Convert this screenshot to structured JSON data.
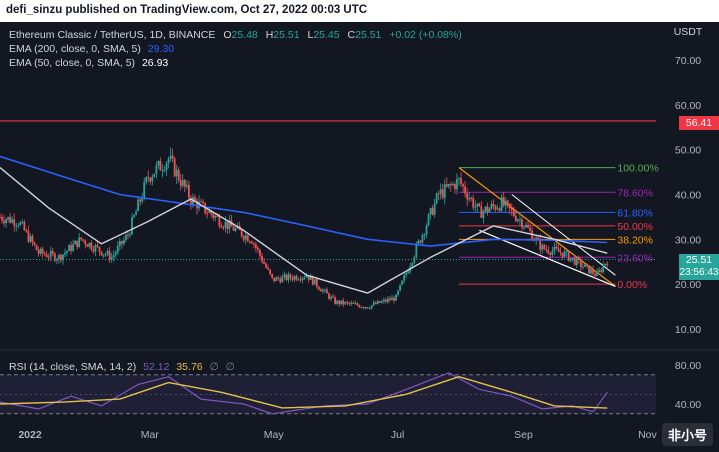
{
  "header": {
    "publisher_text": "defi_sinzu published on TradingView.com, Oct 27, 2022 00:03 UTC"
  },
  "legend": {
    "symbol": "Ethereum Classic / TetherUS, 1D, BINANCE",
    "o_label": "O",
    "o_value": "25.48",
    "h_label": "H",
    "h_value": "25.51",
    "l_label": "L",
    "l_value": "25.45",
    "c_label": "C",
    "c_value": "25.51",
    "change": "+0.02 (+0.08%)",
    "ema200_label": "EMA (200, close, 0, SMA, 5)",
    "ema200_value": "29.30",
    "ema50_label": "EMA (50, close, 0, SMA, 5)",
    "ema50_value": "26.93",
    "rsi_label": "RSI (14, close, SMA, 14, 2)",
    "rsi_value": "52.12",
    "rsi_sma_value": "35.76",
    "empty1": "∅",
    "empty2": "∅"
  },
  "axis": {
    "currency": "USDT",
    "price_ticks": [
      "70.00",
      "60.00",
      "50.00",
      "40.00",
      "30.00",
      "20.00",
      "10.00"
    ],
    "rsi_ticks": [
      "80.00",
      "40.00"
    ],
    "time_ticks": [
      "2022",
      "Mar",
      "May",
      "Jul",
      "Sep",
      "Nov"
    ]
  },
  "price_labels": {
    "horizontal_line": "56.41",
    "current_price": "25.51",
    "countdown": "23:56:43"
  },
  "fib_labels": [
    "100.00%",
    "78.60%",
    "61.80%",
    "50.00%",
    "38.20%",
    "23.60%",
    "0.00%"
  ],
  "colors": {
    "up": "#26a69a",
    "down": "#ef5350",
    "ema200": "#2962ff",
    "ema50": "#d1d4dc",
    "hline": "#f23645",
    "rsi": "#7e57c2",
    "rsi_sma": "#e4c14a",
    "fib": [
      "#4caf50",
      "#9c27b0",
      "#2962ff",
      "#f23645",
      "#ff9800",
      "#9c27b0",
      "#f23645"
    ]
  },
  "watermark": "非小号",
  "chart_data": {
    "type": "candlestick",
    "x_range": [
      "2022-01-01",
      "2022-11-20"
    ],
    "y_range": [
      5,
      78
    ],
    "horizontal_line": 56.41,
    "ema200": [
      {
        "x": "2022-01-01",
        "y": 48.5
      },
      {
        "x": "2022-02-01",
        "y": 44
      },
      {
        "x": "2022-03-01",
        "y": 40
      },
      {
        "x": "2022-04-01",
        "y": 38
      },
      {
        "x": "2022-05-01",
        "y": 36
      },
      {
        "x": "2022-06-01",
        "y": 33
      },
      {
        "x": "2022-07-01",
        "y": 30
      },
      {
        "x": "2022-08-01",
        "y": 28.5
      },
      {
        "x": "2022-09-01",
        "y": 30
      },
      {
        "x": "2022-10-01",
        "y": 29.8
      },
      {
        "x": "2022-10-27",
        "y": 29.3
      }
    ],
    "ema50": [
      {
        "x": "2022-01-01",
        "y": 46
      },
      {
        "x": "2022-01-25",
        "y": 37
      },
      {
        "x": "2022-02-20",
        "y": 29
      },
      {
        "x": "2022-03-15",
        "y": 34
      },
      {
        "x": "2022-04-05",
        "y": 39
      },
      {
        "x": "2022-05-01",
        "y": 32
      },
      {
        "x": "2022-06-01",
        "y": 22
      },
      {
        "x": "2022-07-01",
        "y": 18
      },
      {
        "x": "2022-08-01",
        "y": 26
      },
      {
        "x": "2022-09-01",
        "y": 33
      },
      {
        "x": "2022-10-01",
        "y": 30
      },
      {
        "x": "2022-10-27",
        "y": 26.9
      }
    ],
    "close": [
      {
        "x": "2022-01-01",
        "y": 35
      },
      {
        "x": "2022-01-10",
        "y": 34
      },
      {
        "x": "2022-01-20",
        "y": 27
      },
      {
        "x": "2022-01-30",
        "y": 26
      },
      {
        "x": "2022-02-10",
        "y": 30
      },
      {
        "x": "2022-02-25",
        "y": 26
      },
      {
        "x": "2022-03-05",
        "y": 31
      },
      {
        "x": "2022-03-15",
        "y": 44
      },
      {
        "x": "2022-03-25",
        "y": 48
      },
      {
        "x": "2022-04-05",
        "y": 39
      },
      {
        "x": "2022-04-20",
        "y": 34
      },
      {
        "x": "2022-05-05",
        "y": 30
      },
      {
        "x": "2022-05-15",
        "y": 21
      },
      {
        "x": "2022-06-01",
        "y": 22
      },
      {
        "x": "2022-06-15",
        "y": 16
      },
      {
        "x": "2022-07-01",
        "y": 15
      },
      {
        "x": "2022-07-15",
        "y": 17
      },
      {
        "x": "2022-07-25",
        "y": 28
      },
      {
        "x": "2022-08-05",
        "y": 40
      },
      {
        "x": "2022-08-15",
        "y": 43
      },
      {
        "x": "2022-08-25",
        "y": 36
      },
      {
        "x": "2022-09-05",
        "y": 38
      },
      {
        "x": "2022-09-15",
        "y": 34
      },
      {
        "x": "2022-09-25",
        "y": 28
      },
      {
        "x": "2022-10-05",
        "y": 27
      },
      {
        "x": "2022-10-15",
        "y": 24
      },
      {
        "x": "2022-10-22",
        "y": 22
      },
      {
        "x": "2022-10-27",
        "y": 25.5
      }
    ],
    "rsi": {
      "y_range": [
        20,
        100
      ],
      "upper_band": 70,
      "lower_band": 30,
      "rsi": [
        {
          "x": "2022-01-01",
          "y": 42
        },
        {
          "x": "2022-01-20",
          "y": 35
        },
        {
          "x": "2022-02-05",
          "y": 48
        },
        {
          "x": "2022-02-20",
          "y": 38
        },
        {
          "x": "2022-03-10",
          "y": 60
        },
        {
          "x": "2022-03-25",
          "y": 68
        },
        {
          "x": "2022-04-10",
          "y": 45
        },
        {
          "x": "2022-05-01",
          "y": 40
        },
        {
          "x": "2022-05-15",
          "y": 30
        },
        {
          "x": "2022-06-10",
          "y": 38
        },
        {
          "x": "2022-07-01",
          "y": 40
        },
        {
          "x": "2022-07-20",
          "y": 55
        },
        {
          "x": "2022-08-10",
          "y": 72
        },
        {
          "x": "2022-08-25",
          "y": 55
        },
        {
          "x": "2022-09-10",
          "y": 48
        },
        {
          "x": "2022-09-25",
          "y": 35
        },
        {
          "x": "2022-10-10",
          "y": 38
        },
        {
          "x": "2022-10-20",
          "y": 32
        },
        {
          "x": "2022-10-27",
          "y": 52
        }
      ],
      "sma": [
        {
          "x": "2022-01-01",
          "y": 40
        },
        {
          "x": "2022-02-01",
          "y": 42
        },
        {
          "x": "2022-03-01",
          "y": 45
        },
        {
          "x": "2022-03-25",
          "y": 62
        },
        {
          "x": "2022-04-20",
          "y": 52
        },
        {
          "x": "2022-05-20",
          "y": 36
        },
        {
          "x": "2022-06-20",
          "y": 38
        },
        {
          "x": "2022-07-20",
          "y": 50
        },
        {
          "x": "2022-08-15",
          "y": 68
        },
        {
          "x": "2022-09-10",
          "y": 52
        },
        {
          "x": "2022-10-01",
          "y": 38
        },
        {
          "x": "2022-10-27",
          "y": 35.8
        }
      ]
    },
    "fib_levels": [
      {
        "label": "100.00%",
        "price": 46
      },
      {
        "label": "78.60%",
        "price": 40.5
      },
      {
        "label": "61.80%",
        "price": 36
      },
      {
        "label": "50.00%",
        "price": 33
      },
      {
        "label": "38.20%",
        "price": 30
      },
      {
        "label": "23.60%",
        "price": 26
      },
      {
        "label": "0.00%",
        "price": 20
      }
    ]
  }
}
